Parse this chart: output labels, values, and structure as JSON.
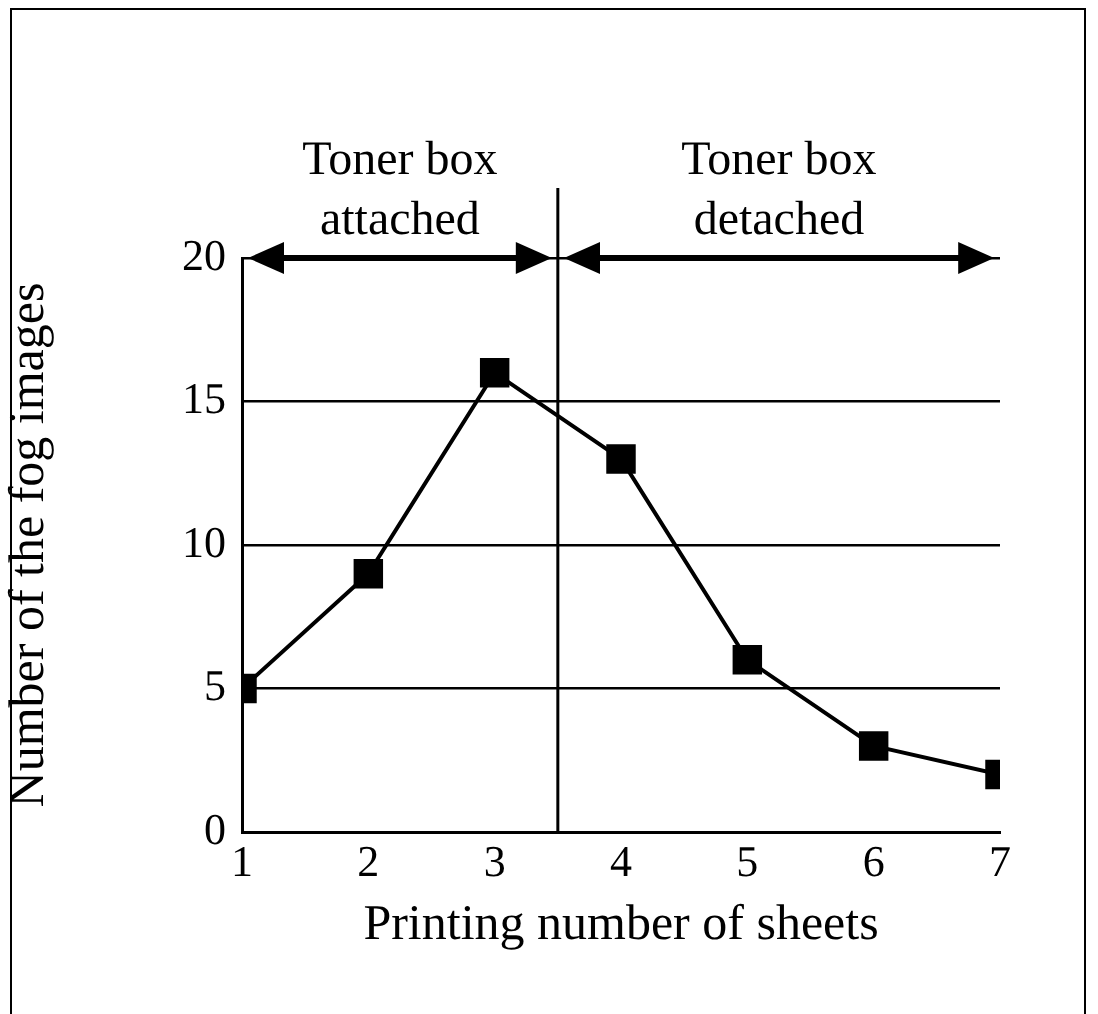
{
  "chart_data": {
    "type": "line",
    "xlabel": "Printing number of sheets",
    "ylabel": "Number of the fog images",
    "x": [
      1,
      2,
      3,
      4,
      5,
      6,
      7
    ],
    "series": [
      {
        "color": "#000000",
        "values": [
          5,
          9,
          16,
          13,
          6,
          3,
          2
        ]
      }
    ],
    "xlim": [
      1,
      7
    ],
    "xticks": [
      1,
      2,
      3,
      4,
      5,
      6,
      7
    ],
    "ylim": [
      0,
      20
    ],
    "yticks": [
      0,
      5,
      10,
      15,
      20
    ],
    "grid": "y",
    "legend": false,
    "marker": "square",
    "line_style": "solid",
    "ref_lines": [
      {
        "axis": "x",
        "value": 3.5
      }
    ],
    "annotations": [
      "Toner box attached",
      "Toner box detached"
    ]
  }
}
